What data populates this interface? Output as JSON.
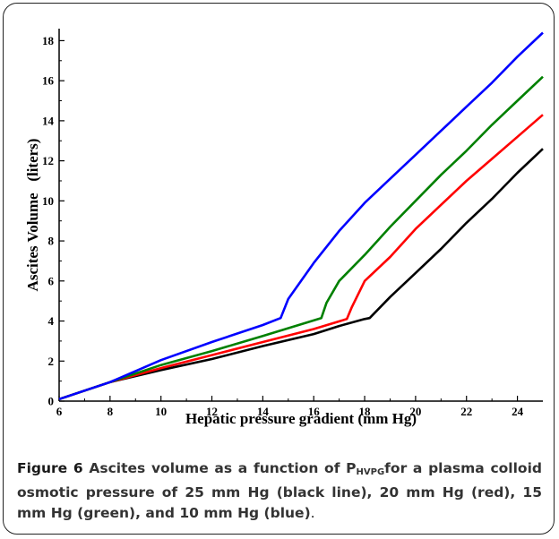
{
  "caption": {
    "label": "Figure 6",
    "text_before_sub": " Ascites volume as a function of P",
    "subscript": "HVPG",
    "text_after_sub": "for a plasma colloid osmotic pressure of 25 mm Hg (black line), 20 mm Hg (red), 15 mm Hg (green), and 10 mm Hg (blue)",
    "trailing": "."
  },
  "chart_data": {
    "type": "line",
    "xlabel": "Hepatic pressure gradient (mm Hg)",
    "ylabel": "Ascites Volume   (liters)",
    "xlim": [
      6,
      25
    ],
    "ylim": [
      0,
      18.6
    ],
    "xticks": [
      6,
      8,
      10,
      12,
      14,
      16,
      18,
      20,
      22,
      24
    ],
    "yticks": [
      0,
      2,
      4,
      6,
      8,
      10,
      12,
      14,
      16,
      18
    ],
    "grid": false,
    "series": [
      {
        "color": "#000000",
        "x": [
          6,
          8,
          10,
          12,
          14,
          16,
          17,
          18,
          18.2,
          19,
          20,
          21,
          22,
          23,
          24,
          25
        ],
        "y": [
          0.1,
          0.95,
          1.55,
          2.1,
          2.75,
          3.35,
          3.75,
          4.1,
          4.15,
          5.2,
          6.4,
          7.6,
          8.9,
          10.1,
          11.4,
          12.6
        ]
      },
      {
        "color": "#ff0000",
        "x": [
          6,
          8,
          10,
          12,
          14,
          16,
          17.3,
          17.5,
          18,
          19,
          20,
          21,
          22,
          23,
          24,
          25
        ],
        "y": [
          0.1,
          0.95,
          1.65,
          2.3,
          2.95,
          3.6,
          4.1,
          4.7,
          6.0,
          7.2,
          8.6,
          9.8,
          11.0,
          12.1,
          13.2,
          14.3
        ]
      },
      {
        "color": "#008000",
        "x": [
          6,
          8,
          10,
          12,
          14,
          16.3,
          16.5,
          17,
          18,
          19,
          20,
          21,
          22,
          23,
          24,
          25
        ],
        "y": [
          0.1,
          0.95,
          1.8,
          2.5,
          3.25,
          4.15,
          4.9,
          6.0,
          7.3,
          8.7,
          10.0,
          11.3,
          12.5,
          13.8,
          15.0,
          16.2
        ]
      },
      {
        "color": "#0000ff",
        "x": [
          6,
          8,
          10,
          12,
          14,
          14.7,
          15,
          16,
          17,
          18,
          19,
          20,
          21,
          22,
          23,
          24,
          25
        ],
        "y": [
          0.1,
          0.95,
          2.05,
          2.95,
          3.8,
          4.15,
          5.1,
          6.9,
          8.5,
          9.9,
          11.1,
          12.3,
          13.5,
          14.7,
          15.9,
          17.2,
          18.4
        ]
      }
    ]
  }
}
